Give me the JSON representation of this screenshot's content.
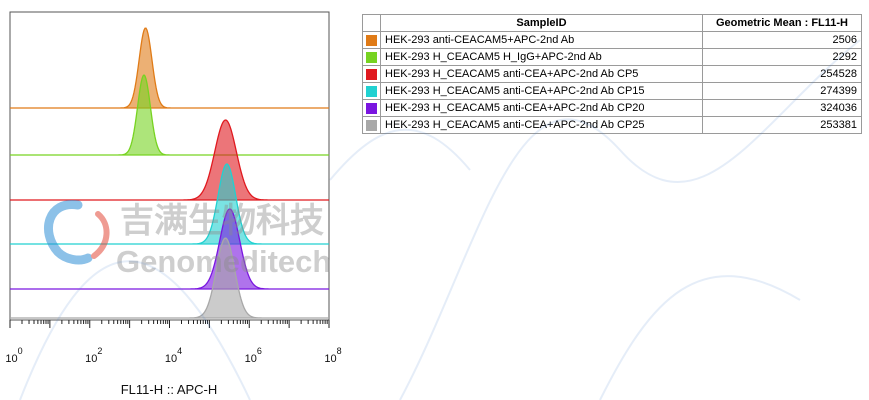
{
  "chart_data": {
    "type": "histogram",
    "xlabel": "FL11-H :: APC-H",
    "xscale": "log",
    "xlim": [
      1,
      100000000
    ],
    "x_ticks": [
      {
        "base": "10",
        "exp": "0",
        "value": 1
      },
      {
        "base": "10",
        "exp": "2",
        "value": 100
      },
      {
        "base": "10",
        "exp": "4",
        "value": 10000
      },
      {
        "base": "10",
        "exp": "6",
        "value": 1000000
      },
      {
        "base": "10",
        "exp": "8",
        "value": 100000000
      }
    ],
    "layout": "offset-stacked",
    "series": [
      {
        "name": "HEK-293 anti-CEACAM5+APC-2nd Ab",
        "color": "#e07b17",
        "peak_x": 2506,
        "spread_log10": 0.16
      },
      {
        "name": "HEK-293 H_CEACAM5 H_IgG+APC-2nd Ab",
        "color": "#77d321",
        "peak_x": 2292,
        "spread_log10": 0.16
      },
      {
        "name": "HEK-293 H_CEACAM5  anti-CEA+APC-2nd Ab CP5",
        "color": "#e0191f",
        "peak_x": 254528,
        "spread_log10": 0.27
      },
      {
        "name": "HEK-293 H_CEACAM5 anti-CEA+APC-2nd Ab CP15",
        "color": "#21d1d1",
        "peak_x": 274399,
        "spread_log10": 0.22
      },
      {
        "name": "HEK-293 H_CEACAM5 anti-CEA+APC-2nd Ab CP20",
        "color": "#7a16e0",
        "peak_x": 324036,
        "spread_log10": 0.25
      },
      {
        "name": "HEK-293 H_CEACAM5 anti-CEA+APC-2nd Ab CP25",
        "color": "#a8a8a8",
        "peak_x": 253381,
        "spread_log10": 0.23
      }
    ]
  },
  "table": {
    "headers": [
      "SampleID",
      "Geometric Mean : FL11-H"
    ],
    "rows": [
      {
        "name": "HEK-293 anti-CEACAM5+APC-2nd Ab",
        "value": "2506",
        "color": "#e07b17"
      },
      {
        "name": "HEK-293 H_CEACAM5 H_IgG+APC-2nd Ab",
        "value": "2292",
        "color": "#77d321"
      },
      {
        "name": "HEK-293 H_CEACAM5  anti-CEA+APC-2nd Ab CP5",
        "value": "254528",
        "color": "#e0191f"
      },
      {
        "name": "HEK-293 H_CEACAM5 anti-CEA+APC-2nd Ab CP15",
        "value": "274399",
        "color": "#21d1d1"
      },
      {
        "name": "HEK-293 H_CEACAM5 anti-CEA+APC-2nd Ab CP20",
        "value": "324036",
        "color": "#7a16e0"
      },
      {
        "name": "HEK-293 H_CEACAM5 anti-CEA+APC-2nd Ab CP25",
        "value": "253381",
        "color": "#a8a8a8"
      }
    ]
  },
  "watermark": {
    "chinese": "吉满生物科技",
    "english": "Genomeditech"
  }
}
